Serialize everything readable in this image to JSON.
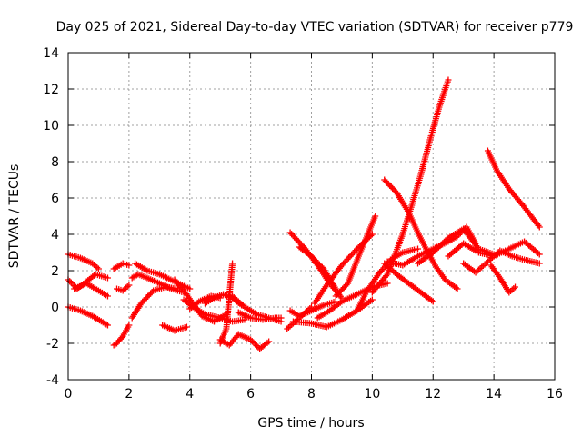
{
  "chart_data": {
    "type": "scatter",
    "title": "Day 025 of 2021, Sidereal Day-to-day VTEC variation (SDTVAR) for receiver p779",
    "xlabel": "GPS time / hours",
    "ylabel": "SDTVAR / TECUs",
    "xlim": [
      0,
      16
    ],
    "ylim": [
      -4,
      14
    ],
    "xticks": [
      0,
      2,
      4,
      6,
      8,
      10,
      12,
      14,
      16
    ],
    "yticks": [
      -4,
      -2,
      0,
      2,
      4,
      6,
      8,
      10,
      12,
      14
    ],
    "grid": true,
    "marker": "plus",
    "color": "#ff0000",
    "series": [
      {
        "name": "track-1",
        "x": [
          0.0,
          0.4,
          0.8,
          1.0
        ],
        "y": [
          2.9,
          2.7,
          2.4,
          2.1
        ]
      },
      {
        "name": "track-2",
        "x": [
          0.0,
          0.3,
          0.6,
          0.9,
          1.3
        ],
        "y": [
          1.5,
          1.0,
          1.4,
          1.8,
          1.6
        ]
      },
      {
        "name": "track-3",
        "x": [
          0.0,
          0.4,
          0.8,
          1.2,
          1.3
        ],
        "y": [
          0.0,
          -0.2,
          -0.5,
          -0.9,
          -1.0
        ]
      },
      {
        "name": "track-4",
        "x": [
          0.2,
          0.6,
          1.0,
          1.3
        ],
        "y": [
          1.0,
          1.3,
          0.9,
          0.6
        ]
      },
      {
        "name": "track-5",
        "x": [
          1.5,
          1.6,
          1.8,
          2.0
        ],
        "y": [
          -2.1,
          -2.0,
          -1.6,
          -1.0
        ]
      },
      {
        "name": "track-6",
        "x": [
          1.5,
          1.8,
          2.0
        ],
        "y": [
          2.1,
          2.4,
          2.3
        ]
      },
      {
        "name": "track-7",
        "x": [
          1.6,
          1.8,
          2.0
        ],
        "y": [
          1.0,
          0.9,
          1.2
        ]
      },
      {
        "name": "track-8",
        "x": [
          2.1,
          2.4,
          2.8,
          3.2,
          3.6
        ],
        "y": [
          -0.6,
          0.2,
          0.9,
          1.1,
          1.0
        ]
      },
      {
        "name": "track-9",
        "x": [
          2.1,
          2.3,
          2.6,
          3.0,
          3.4,
          3.8
        ],
        "y": [
          1.6,
          1.8,
          1.6,
          1.3,
          1.0,
          0.8
        ]
      },
      {
        "name": "track-10",
        "x": [
          2.2,
          2.6,
          3.0,
          3.5,
          4.0
        ],
        "y": [
          2.4,
          2.0,
          1.8,
          1.4,
          1.0
        ]
      },
      {
        "name": "track-11",
        "x": [
          3.1,
          3.5,
          3.9
        ],
        "y": [
          -1.0,
          -1.3,
          -1.1
        ]
      },
      {
        "name": "track-12",
        "x": [
          3.5,
          3.8,
          4.1,
          4.4,
          4.8,
          5.2
        ],
        "y": [
          1.5,
          0.9,
          0.2,
          -0.5,
          -0.8,
          -0.4
        ]
      },
      {
        "name": "track-13",
        "x": [
          3.8,
          4.1,
          4.5,
          5.0,
          5.4,
          5.8
        ],
        "y": [
          0.4,
          0.0,
          -0.4,
          -0.6,
          -0.8,
          -0.7
        ]
      },
      {
        "name": "track-14",
        "x": [
          4.0,
          4.3,
          4.7,
          5.0
        ],
        "y": [
          -0.1,
          0.3,
          0.6,
          0.5
        ]
      },
      {
        "name": "track-15",
        "x": [
          4.5,
          4.8,
          5.1,
          5.4,
          5.7
        ],
        "y": [
          0.2,
          0.5,
          0.7,
          0.5,
          0.1
        ]
      },
      {
        "name": "track-16",
        "x": [
          5.0,
          5.2,
          5.4
        ],
        "y": [
          -2.0,
          -1.2,
          2.4
        ]
      },
      {
        "name": "track-17",
        "x": [
          5.0,
          5.3,
          5.6,
          6.0,
          6.3,
          6.6
        ],
        "y": [
          -1.8,
          -2.1,
          -1.5,
          -1.8,
          -2.3,
          -1.9
        ]
      },
      {
        "name": "track-18",
        "x": [
          5.4,
          5.8,
          6.2,
          6.6,
          7.0
        ],
        "y": [
          0.6,
          0.0,
          -0.4,
          -0.6,
          -0.8
        ]
      },
      {
        "name": "track-19",
        "x": [
          5.6,
          6.0,
          6.4,
          6.8,
          7.0
        ],
        "y": [
          -0.3,
          -0.6,
          -0.7,
          -0.6,
          -0.6
        ]
      },
      {
        "name": "track-20",
        "x": [
          7.2,
          7.4,
          7.6,
          7.8,
          8.0
        ],
        "y": [
          -1.2,
          -0.9,
          -0.6,
          -0.3,
          0.0
        ]
      },
      {
        "name": "track-21",
        "x": [
          7.3,
          7.6,
          8.0,
          8.4,
          8.8
        ],
        "y": [
          -0.2,
          -0.5,
          -0.2,
          0.1,
          0.3
        ]
      },
      {
        "name": "track-22",
        "x": [
          7.3,
          7.8,
          8.2,
          8.6,
          9.0
        ],
        "y": [
          4.1,
          3.2,
          2.3,
          1.3,
          0.5
        ]
      },
      {
        "name": "track-23",
        "x": [
          7.6,
          8.0,
          8.4,
          8.8
        ],
        "y": [
          3.3,
          2.8,
          2.1,
          1.0
        ]
      },
      {
        "name": "track-24",
        "x": [
          7.4,
          8.0,
          8.5,
          9.0,
          9.5,
          10.0
        ],
        "y": [
          -0.8,
          -0.9,
          -1.1,
          -0.7,
          -0.2,
          0.4
        ]
      },
      {
        "name": "track-25",
        "x": [
          8.1,
          8.5,
          9.0,
          9.5,
          10.0
        ],
        "y": [
          0.2,
          1.2,
          2.3,
          3.2,
          4.0
        ]
      },
      {
        "name": "track-26",
        "x": [
          8.2,
          8.6,
          9.0,
          9.5,
          10.0,
          10.5
        ],
        "y": [
          -0.6,
          -0.2,
          0.3,
          0.7,
          1.1,
          1.3
        ]
      },
      {
        "name": "track-27",
        "x": [
          8.8,
          9.2,
          9.6,
          10.0,
          10.1
        ],
        "y": [
          0.6,
          1.3,
          3.0,
          4.6,
          5.0
        ]
      },
      {
        "name": "track-28",
        "x": [
          9.5,
          9.8,
          10.2,
          10.6,
          11.0,
          11.5
        ],
        "y": [
          -0.2,
          0.8,
          1.8,
          2.6,
          3.0,
          3.2
        ]
      },
      {
        "name": "track-29",
        "x": [
          10.0,
          10.5,
          11.0,
          11.3,
          11.6,
          11.9,
          12.2,
          12.5
        ],
        "y": [
          0.8,
          1.8,
          4.0,
          5.6,
          7.3,
          9.2,
          11.0,
          12.5
        ]
      },
      {
        "name": "track-30",
        "x": [
          10.4,
          10.8,
          11.2,
          11.5,
          11.8,
          12.1,
          12.4,
          12.8
        ],
        "y": [
          7.0,
          6.3,
          5.2,
          4.1,
          3.1,
          2.2,
          1.5,
          1.0
        ]
      },
      {
        "name": "track-31",
        "x": [
          10.4,
          10.8,
          11.2,
          11.6,
          12.0
        ],
        "y": [
          2.4,
          1.8,
          1.3,
          0.8,
          0.3
        ]
      },
      {
        "name": "track-32",
        "x": [
          10.5,
          11.0,
          11.5,
          12.0,
          12.5,
          12.8,
          13.1,
          13.4
        ],
        "y": [
          2.5,
          2.3,
          2.8,
          3.2,
          3.6,
          3.9,
          4.4,
          3.5
        ]
      },
      {
        "name": "track-33",
        "x": [
          11.5,
          12.0,
          12.5,
          13.0,
          13.5,
          14.0
        ],
        "y": [
          2.4,
          3.0,
          3.8,
          4.3,
          3.2,
          2.9
        ]
      },
      {
        "name": "track-34",
        "x": [
          12.5,
          13.0,
          13.5,
          14.0,
          14.5,
          15.0,
          15.5
        ],
        "y": [
          2.8,
          3.5,
          3.0,
          2.8,
          3.2,
          3.6,
          2.9
        ]
      },
      {
        "name": "track-35",
        "x": [
          13.0,
          13.4,
          13.8,
          14.2,
          14.6,
          15.0,
          15.5
        ],
        "y": [
          2.4,
          1.9,
          2.5,
          3.1,
          2.8,
          2.6,
          2.4
        ]
      },
      {
        "name": "track-36",
        "x": [
          13.8,
          14.1,
          14.5,
          15.0,
          15.5
        ],
        "y": [
          8.6,
          7.5,
          6.5,
          5.5,
          4.4
        ]
      },
      {
        "name": "track-37",
        "x": [
          13.9,
          14.2,
          14.5,
          14.7
        ],
        "y": [
          2.3,
          1.6,
          0.8,
          1.1
        ]
      }
    ]
  }
}
